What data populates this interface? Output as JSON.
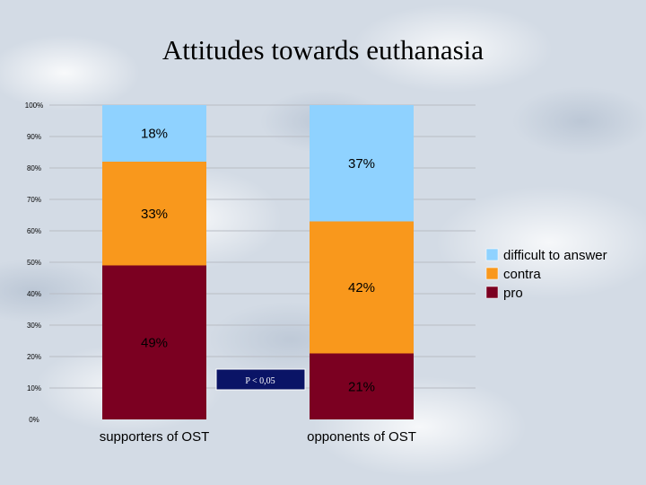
{
  "title": "Attitudes towards euthanasia",
  "annotation": "P < 0,05",
  "chart_data": {
    "type": "bar",
    "stacked": true,
    "title": "Attitudes towards euthanasia",
    "categories": [
      "supporters of OST",
      "opponents of OST"
    ],
    "series": [
      {
        "name": "pro",
        "values": [
          49,
          21
        ],
        "labels": [
          "49%",
          "21%"
        ],
        "color": "#7b0021"
      },
      {
        "name": "contra",
        "values": [
          33,
          42
        ],
        "labels": [
          "33%",
          "42%"
        ],
        "color": "#f9981c"
      },
      {
        "name": "difficult to answer",
        "values": [
          18,
          37
        ],
        "labels": [
          "18%",
          "37%"
        ],
        "color": "#8fd2ff"
      }
    ],
    "yticks": [
      "0%",
      "10%",
      "20%",
      "30%",
      "40%",
      "50%",
      "60%",
      "70%",
      "80%",
      "90%",
      "100%"
    ],
    "ylim": [
      0,
      100
    ],
    "legend": {
      "placement": "right",
      "order": [
        "difficult to answer",
        "contra",
        "pro"
      ]
    },
    "grid": true
  }
}
